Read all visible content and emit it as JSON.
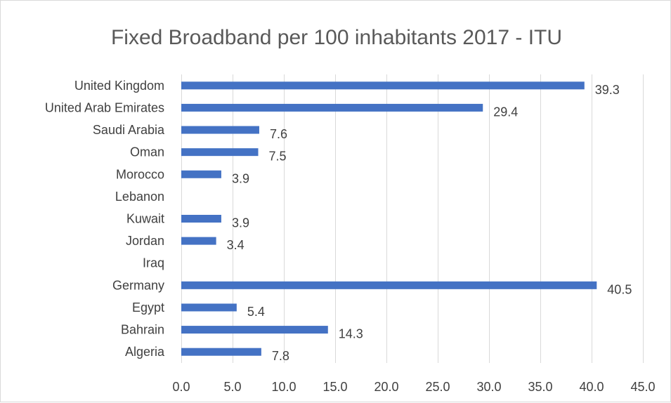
{
  "chart_data": {
    "type": "bar",
    "orientation": "horizontal",
    "title": "Fixed Broadband per 100 inhabitants 2017 - ITU",
    "xlabel": "",
    "ylabel": "",
    "categories": [
      "United Kingdom",
      "United Arab Emirates",
      "Saudi Arabia",
      "Oman",
      "Morocco",
      "Lebanon",
      "Kuwait",
      "Jordan",
      "Iraq",
      "Germany",
      "Egypt",
      "Bahrain",
      "Algeria"
    ],
    "values": [
      39.3,
      29.4,
      7.6,
      7.5,
      3.9,
      null,
      3.9,
      3.4,
      null,
      40.5,
      5.4,
      14.3,
      7.8
    ],
    "data_labels": [
      "39.3",
      "29.4",
      "7.6",
      "7.5",
      "3.9",
      "",
      "3.9",
      "3.4",
      "",
      "40.5",
      "5.4",
      "14.3",
      "7.8"
    ],
    "xlim": [
      0,
      45
    ],
    "x_ticks": [
      0,
      5,
      10,
      15,
      20,
      25,
      30,
      35,
      40,
      45
    ],
    "x_tick_labels": [
      "0.0",
      "5.0",
      "10.0",
      "15.0",
      "20.0",
      "25.0",
      "30.0",
      "35.0",
      "40.0",
      "45.0"
    ],
    "grid": true,
    "legend": "none",
    "colors": {
      "bar": "#4472c4",
      "grid": "#d9d9d9",
      "text": "#404040",
      "title": "#595959"
    }
  }
}
